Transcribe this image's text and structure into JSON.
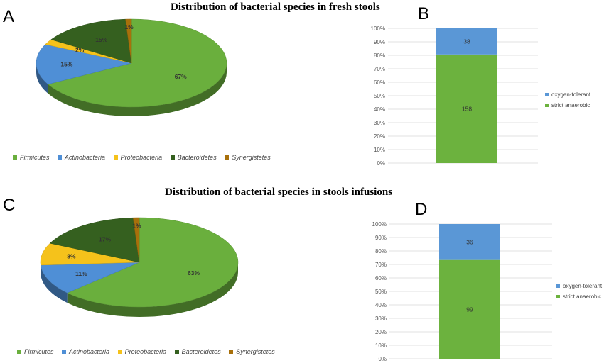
{
  "panels": {
    "a": "A",
    "b": "B",
    "c": "C",
    "d": "D"
  },
  "colors": {
    "Firmicutes": "#6AAF3D",
    "Actinobacteria": "#4F8FD6",
    "Proteobacteria": "#F5C21B",
    "Bacteroidetes": "#35601F",
    "Synergistetes": "#A8700B",
    "oxygen_tolerant": "#5A97D6",
    "strict_anaerobic": "#6CB23E"
  },
  "chart_data": [
    {
      "type": "pie",
      "panel": "A",
      "title": "Distribution of bacterial species in fresh stools",
      "labels": [
        "Firmicutes",
        "Actinobacteria",
        "Proteobacteria",
        "Bacteroidetes",
        "Synergistetes"
      ],
      "values": [
        67,
        15,
        2,
        15,
        1
      ],
      "data_labels": [
        "67%",
        "15%",
        "2%",
        "15%",
        "1%"
      ],
      "legend": "bottom",
      "style": "3d"
    },
    {
      "type": "bar",
      "panel": "B",
      "stacked": "percent",
      "categories": [
        ""
      ],
      "series": [
        {
          "name": "strict anaerobic",
          "values": [
            158
          ]
        },
        {
          "name": "oxygen-tolerant",
          "values": [
            38
          ]
        }
      ],
      "y_ticks": [
        "0%",
        "10%",
        "20%",
        "30%",
        "40%",
        "50%",
        "60%",
        "70%",
        "80%",
        "90%",
        "100%"
      ],
      "ylim": [
        0,
        100
      ],
      "grid": true,
      "legend": "right"
    },
    {
      "type": "pie",
      "panel": "C",
      "title": "Distribution of bacterial species in stools infusions",
      "labels": [
        "Firmicutes",
        "Actinobacteria",
        "Proteobacteria",
        "Bacteroidetes",
        "Synergistetes"
      ],
      "values": [
        63,
        11,
        8,
        17,
        1
      ],
      "data_labels": [
        "63%",
        "11%",
        "8%",
        "17%",
        "1%"
      ],
      "legend": "bottom",
      "style": "3d"
    },
    {
      "type": "bar",
      "panel": "D",
      "stacked": "percent",
      "categories": [
        ""
      ],
      "series": [
        {
          "name": "strict anaerobic",
          "values": [
            99
          ]
        },
        {
          "name": "oxygen-tolerant",
          "values": [
            36
          ]
        }
      ],
      "y_ticks": [
        "0%",
        "10%",
        "20%",
        "30%",
        "40%",
        "50%",
        "60%",
        "70%",
        "80%",
        "90%",
        "100%"
      ],
      "ylim": [
        0,
        100
      ],
      "grid": true,
      "legend": "right"
    }
  ]
}
